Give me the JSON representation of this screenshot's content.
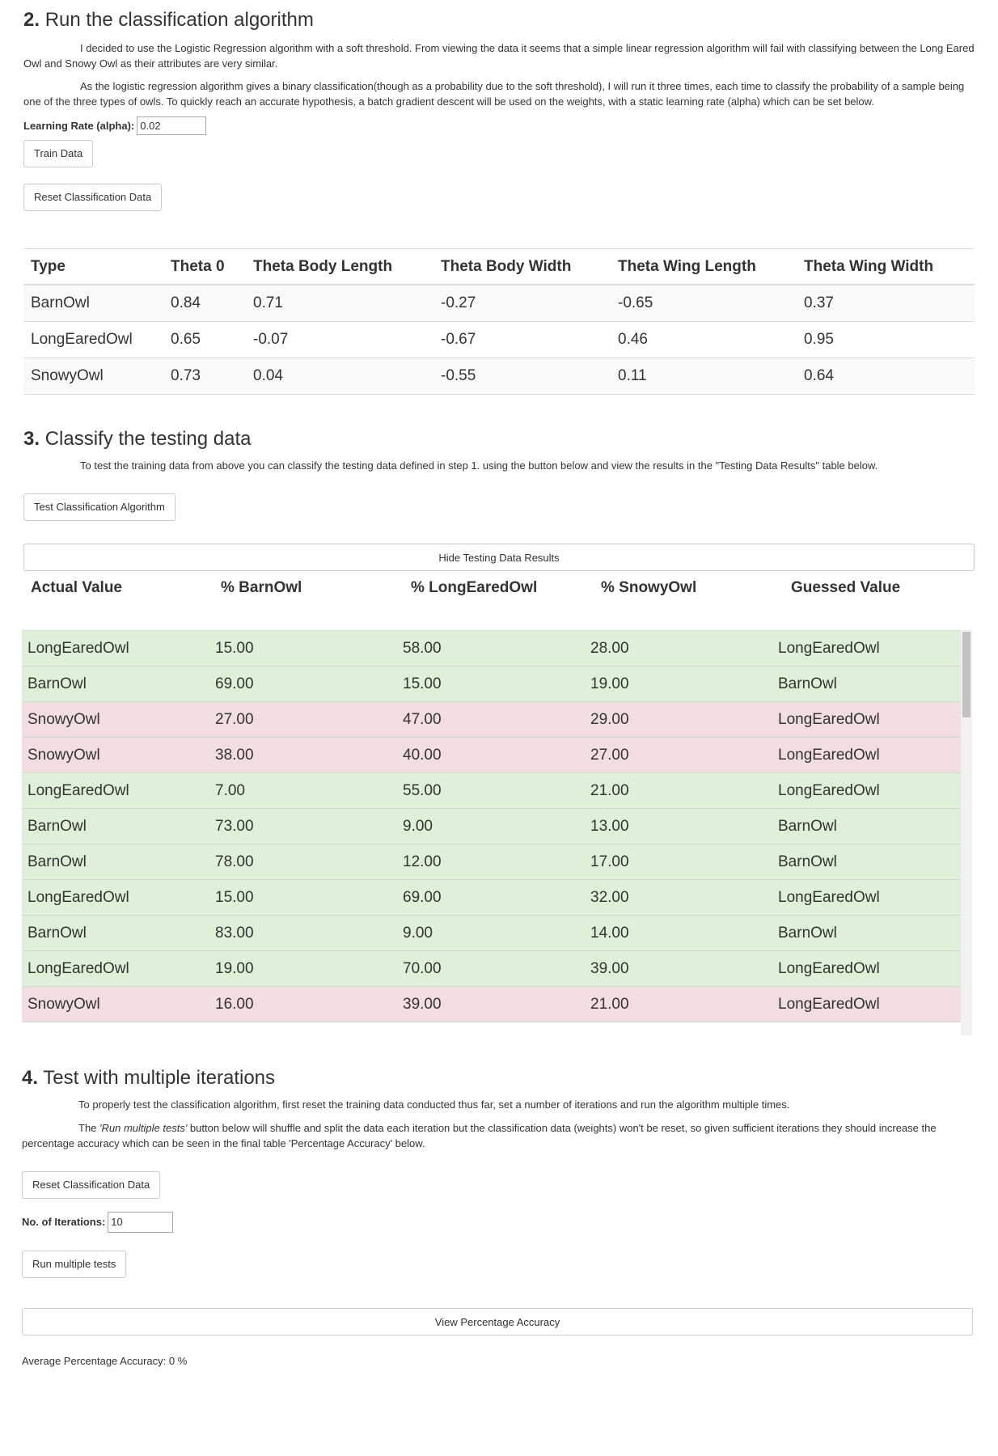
{
  "section2": {
    "num": "2.",
    "title": "Run the classification algorithm",
    "para1": "I decided to use the Logistic Regression algorithm with a soft threshold. From viewing the data it seems that a simple linear regression algorithm will fail with classifying between the Long Eared Owl and Snowy Owl as their attributes are very similar.",
    "para2": "As the logistic regression algorithm gives a binary classification(though as a probability due to the soft threshold), I will run it three times, each time to classify the probability of a sample being one of the three types of owls. To quickly reach an accurate hypothesis, a batch gradient descent will be used on the weights, with a static learning rate (alpha) which can be set below.",
    "alpha_label": "Learning Rate (alpha):",
    "alpha_value": "0.02",
    "train_button": "Train Data",
    "reset_button": "Reset Classification Data",
    "table": {
      "headers": [
        "Type",
        "Theta 0",
        "Theta Body Length",
        "Theta Body Width",
        "Theta Wing Length",
        "Theta Wing Width"
      ],
      "rows": [
        [
          "BarnOwl",
          "0.84",
          "0.71",
          "-0.27",
          "-0.65",
          "0.37"
        ],
        [
          "LongEaredOwl",
          "0.65",
          "-0.07",
          "-0.67",
          "0.46",
          "0.95"
        ],
        [
          "SnowyOwl",
          "0.73",
          "0.04",
          "-0.55",
          "0.11",
          "0.64"
        ]
      ]
    }
  },
  "section3": {
    "num": "3.",
    "title": "Classify the testing data",
    "para": "To test the training data from above you can classify the testing data defined in step 1. using the button below and view the results in the \"Testing Data Results\" table below.",
    "test_button": "Test Classification Algorithm",
    "hide_button": "Hide Testing Data Results",
    "results": {
      "headers": [
        "Actual Value",
        "% BarnOwl",
        "% LongEaredOwl",
        "% SnowyOwl",
        "Guessed Value"
      ],
      "rows": [
        {
          "cells": [
            "LongEaredOwl",
            "15.00",
            "58.00",
            "28.00",
            "LongEaredOwl"
          ],
          "status": "correct"
        },
        {
          "cells": [
            "BarnOwl",
            "69.00",
            "15.00",
            "19.00",
            "BarnOwl"
          ],
          "status": "correct"
        },
        {
          "cells": [
            "SnowyOwl",
            "27.00",
            "47.00",
            "29.00",
            "LongEaredOwl"
          ],
          "status": "incorrect"
        },
        {
          "cells": [
            "SnowyOwl",
            "38.00",
            "40.00",
            "27.00",
            "LongEaredOwl"
          ],
          "status": "incorrect"
        },
        {
          "cells": [
            "LongEaredOwl",
            "7.00",
            "55.00",
            "21.00",
            "LongEaredOwl"
          ],
          "status": "correct"
        },
        {
          "cells": [
            "BarnOwl",
            "73.00",
            "9.00",
            "13.00",
            "BarnOwl"
          ],
          "status": "correct"
        },
        {
          "cells": [
            "BarnOwl",
            "78.00",
            "12.00",
            "17.00",
            "BarnOwl"
          ],
          "status": "correct"
        },
        {
          "cells": [
            "LongEaredOwl",
            "15.00",
            "69.00",
            "32.00",
            "LongEaredOwl"
          ],
          "status": "correct"
        },
        {
          "cells": [
            "BarnOwl",
            "83.00",
            "9.00",
            "14.00",
            "BarnOwl"
          ],
          "status": "correct"
        },
        {
          "cells": [
            "LongEaredOwl",
            "19.00",
            "70.00",
            "39.00",
            "LongEaredOwl"
          ],
          "status": "correct"
        },
        {
          "cells": [
            "SnowyOwl",
            "16.00",
            "39.00",
            "21.00",
            "LongEaredOwl"
          ],
          "status": "incorrect"
        }
      ]
    }
  },
  "section4": {
    "num": "4.",
    "title": "Test with multiple iterations",
    "para1": "To properly test the classification algorithm, first reset the training data conducted thus far, set a number of iterations and run the algorithm multiple times.",
    "para2_pre": "The ",
    "para2_em": "'Run multiple tests'",
    "para2_post": " button below will shuffle and split the data each iteration but the classification data (weights) won't be reset, so given sufficient iterations they should increase the percentage accuracy which can be seen in the final table 'Percentage Accuracy' below.",
    "reset_button": "Reset Classification Data",
    "iterations_label": "No. of Iterations:",
    "iterations_value": "10",
    "run_button": "Run multiple tests",
    "view_button": "View Percentage Accuracy",
    "accuracy_text": "Average Percentage Accuracy: 0 %"
  },
  "colors": {
    "correct_row": "#dff0d8",
    "incorrect_row": "#f2dede"
  }
}
